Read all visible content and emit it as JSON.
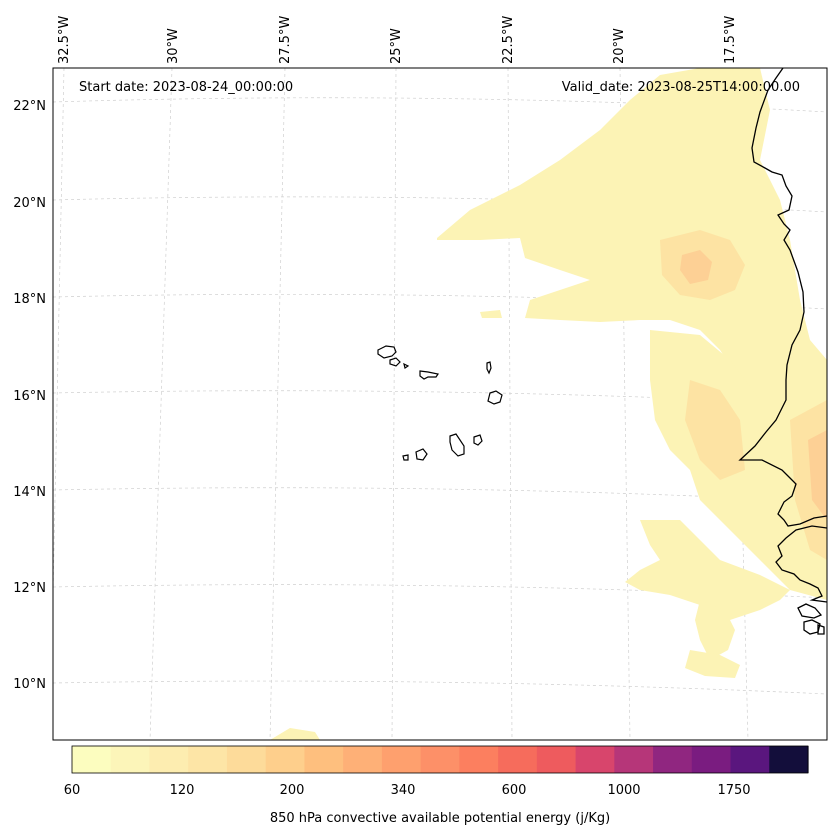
{
  "start_date": "Start date: 2023-08-24_00:00:00",
  "valid_date": "Valid_date: 2023-08-25T14:00:00.00",
  "lon_labels": [
    "32.5°W",
    "30°W",
    "27.5°W",
    "25°W",
    "22.5°W",
    "20°W",
    "17.5°W"
  ],
  "lat_labels": [
    "22°N",
    "20°N",
    "18°N",
    "16°N",
    "14°N",
    "12°N",
    "10°N"
  ],
  "colorbar": {
    "title": "850 hPa convective available potential energy (j/Kg)",
    "tick_labels": [
      "60",
      "120",
      "200",
      "340",
      "600",
      "1000",
      "1750"
    ],
    "colors": [
      "#fcfdbf",
      "#fcf5b9",
      "#fdedb0",
      "#fde5a6",
      "#fddb9a",
      "#fecf8c",
      "#febf7e",
      "#feb077",
      "#fea06e",
      "#fd9068",
      "#fc7f5f",
      "#f66c5c",
      "#ee5b5e",
      "#d8456c",
      "#b63679",
      "#902680",
      "#7a1c80",
      "#5a167e",
      "#130e3b"
    ]
  },
  "map": {
    "coastline_color": "#000000",
    "grid_color": "#cccccc",
    "field_colors": {
      "low": "#fcf3b5",
      "mid": "#fde3a3",
      "high": "#fdd095"
    }
  }
}
